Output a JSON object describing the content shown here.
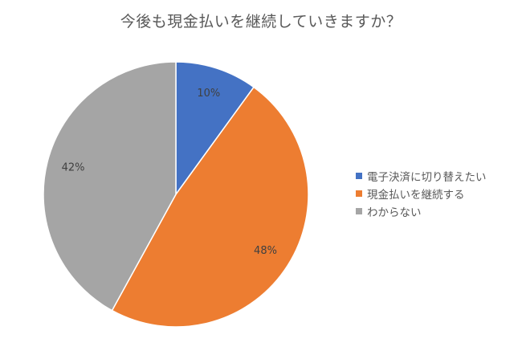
{
  "chart_data": {
    "type": "pie",
    "title": "今後も現金払いを継続していきますか？",
    "legend_position": "right",
    "series": [
      {
        "name": "電子決済に切り替えたい",
        "value": 10,
        "label": "10%",
        "color": "#4472C4"
      },
      {
        "name": "現金払いを継続する",
        "value": 48,
        "label": "48%",
        "color": "#ED7D31"
      },
      {
        "name": "わからない",
        "value": 42,
        "label": "42%",
        "color": "#A5A5A5"
      }
    ]
  }
}
